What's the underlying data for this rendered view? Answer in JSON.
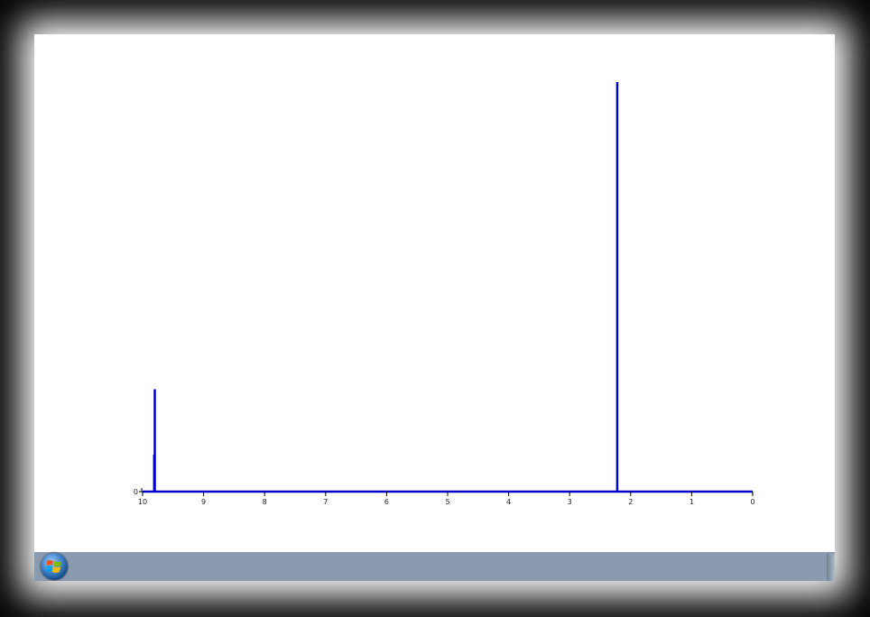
{
  "window": {
    "background": "#ffffff",
    "taskbar_color": "#8a9bb0"
  },
  "icons": {
    "start": "windows-start-orb-icon"
  },
  "chart_data": {
    "type": "line",
    "series_color": "#0000cc",
    "xlim": [
      10,
      0
    ],
    "x_reversed": true,
    "xticks": [
      "10",
      "9",
      "8",
      "7",
      "6",
      "5",
      "4",
      "3",
      "2",
      "1",
      "0"
    ],
    "yticks": [
      "0"
    ],
    "ylim": [
      0,
      1
    ],
    "peaks": [
      {
        "x": 9.8,
        "y": 0.25
      },
      {
        "x": 9.81,
        "y": 0.09
      },
      {
        "x": 2.22,
        "y": 1.0
      }
    ]
  }
}
